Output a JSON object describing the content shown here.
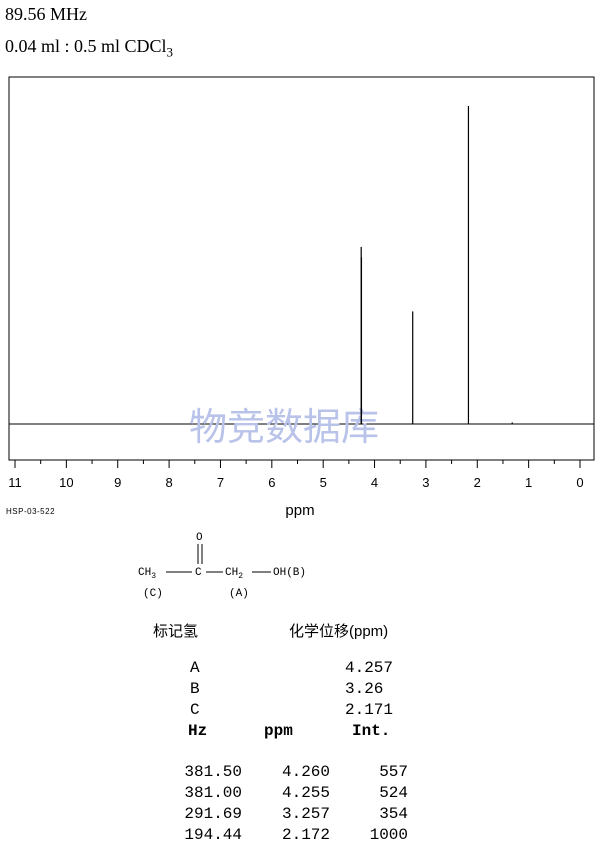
{
  "header": {
    "frequency": "89.56 MHz",
    "sample_prefix": "0.04 ml : 0.5 ml CDCl",
    "sample_sub": "3"
  },
  "code": "HSP-03-522",
  "watermark": "物竞数据库",
  "structure": {
    "o_label": "O",
    "ch3": "CH3",
    "c": "C",
    "ch2": "CH2",
    "oh": "OH(B)",
    "label_c": "(C)",
    "label_a": "(A)"
  },
  "assignment": {
    "col1": "标记氢",
    "col2": "化学位移(ppm)",
    "rows": [
      {
        "label": "A",
        "shift": "4.257"
      },
      {
        "label": "B",
        "shift": "3.26"
      },
      {
        "label": "C",
        "shift": "2.171"
      }
    ]
  },
  "peaks": {
    "headers": [
      "Hz",
      "ppm",
      "Int."
    ],
    "rows": [
      {
        "hz": "381.50",
        "ppm": "4.260",
        "int": "557"
      },
      {
        "hz": "381.00",
        "ppm": "4.255",
        "int": "524"
      },
      {
        "hz": "291.69",
        "ppm": "3.257",
        "int": "354"
      },
      {
        "hz": "194.44",
        "ppm": "2.172",
        "int": "1000"
      }
    ]
  },
  "chart_data": {
    "type": "line",
    "xlabel": "ppm",
    "xlim": [
      11,
      0
    ],
    "x_reversed": true,
    "ticks": [
      "11",
      "10",
      "9",
      "8",
      "7",
      "6",
      "5",
      "4",
      "3",
      "2",
      "1",
      "0"
    ],
    "peaks": [
      {
        "ppm": 4.26,
        "intensity": 557
      },
      {
        "ppm": 4.255,
        "intensity": 524
      },
      {
        "ppm": 3.257,
        "intensity": 354
      },
      {
        "ppm": 2.172,
        "intensity": 1000
      },
      {
        "ppm": 1.32,
        "intensity": 5
      }
    ],
    "line_color": "#000000",
    "watermark_color": "#b9c3ea"
  }
}
